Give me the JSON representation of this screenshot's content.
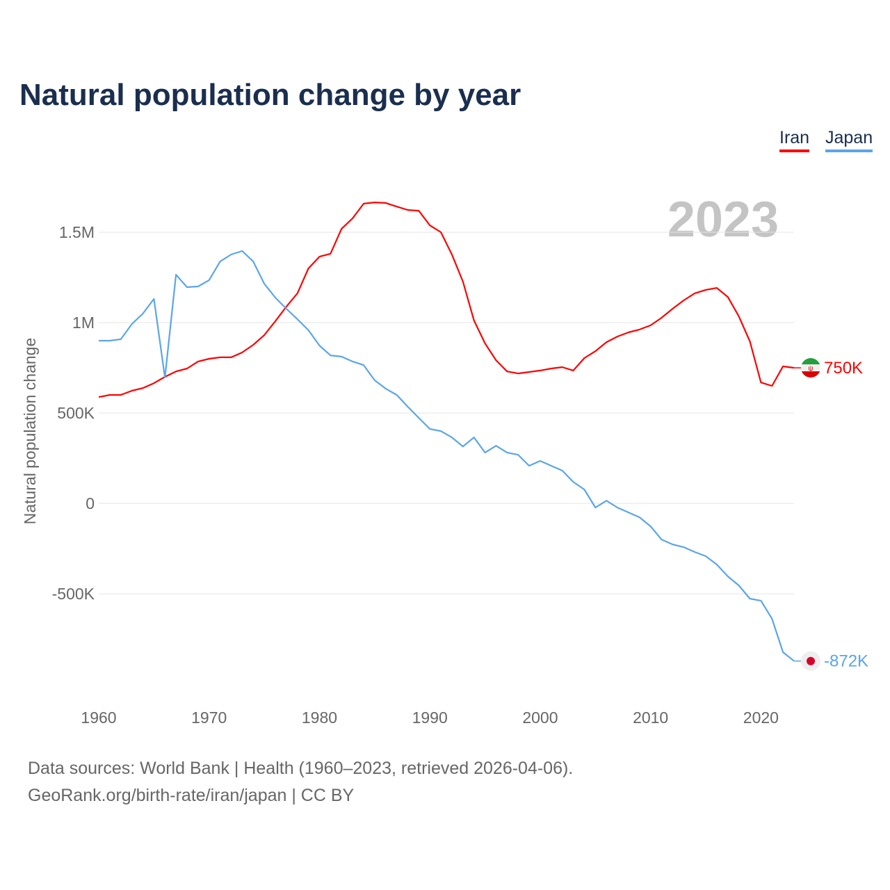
{
  "title": "Natural population change by year",
  "legend": [
    {
      "name": "Iran",
      "color": "#ff0000"
    },
    {
      "name": "Japan",
      "color": "#5aa5ea"
    }
  ],
  "year_label": "2023",
  "source_line1": "Data sources: World Bank | Health (1960–2023, retrieved 2026-04-06).",
  "source_line2": "GeoRank.org/birth-rate/iran/japan | CC BY",
  "chart_data": {
    "type": "line",
    "title": "Natural population change by year",
    "xlabel": "",
    "ylabel": "Natural population change",
    "xlim": [
      1960,
      2023
    ],
    "ylim": [
      -1000000,
      1800000
    ],
    "x_ticks": [
      1960,
      1970,
      1980,
      1990,
      2000,
      2010,
      2020
    ],
    "y_ticks": [
      {
        "v": -500000,
        "label": "-500K"
      },
      {
        "v": 0,
        "label": "0"
      },
      {
        "v": 500000,
        "label": "500K"
      },
      {
        "v": 1000000,
        "label": "1M"
      },
      {
        "v": 1500000,
        "label": "1.5M"
      }
    ],
    "grid": true,
    "legend_position": "top-right",
    "x_start": 1960,
    "series": [
      {
        "name": "Iran",
        "color": "#ff0000",
        "end_label": "750K",
        "flag": "iran-flag",
        "values": [
          588,
          600,
          600,
          623,
          638,
          665,
          700,
          730,
          746,
          785,
          800,
          808,
          808,
          835,
          877,
          931,
          1008,
          1088,
          1162,
          1300,
          1365,
          1381,
          1519,
          1577,
          1658,
          1665,
          1662,
          1642,
          1623,
          1619,
          1538,
          1500,
          1377,
          1227,
          1012,
          885,
          792,
          730,
          719,
          727,
          735,
          746,
          754,
          735,
          804,
          842,
          892,
          923,
          946,
          962,
          985,
          1027,
          1077,
          1123,
          1162,
          1181,
          1192,
          1142,
          1035,
          896,
          669,
          650,
          758,
          750
        ]
      },
      {
        "name": "Japan",
        "color": "#5aa5ea",
        "end_label": "-872K",
        "flag": "japan-flag",
        "values": [
          900,
          900,
          908,
          992,
          1050,
          1131,
          696,
          1265,
          1196,
          1200,
          1235,
          1338,
          1377,
          1396,
          1338,
          1215,
          1138,
          1077,
          1019,
          958,
          873,
          819,
          812,
          785,
          765,
          681,
          635,
          600,
          535,
          473,
          412,
          400,
          365,
          315,
          365,
          281,
          319,
          281,
          269,
          208,
          235,
          208,
          181,
          119,
          77,
          -23,
          15,
          -23,
          -50,
          -77,
          -127,
          -200,
          -227,
          -242,
          -269,
          -292,
          -338,
          -404,
          -454,
          -527,
          -538,
          -638,
          -823,
          -872
        ]
      }
    ],
    "value_unit": "thousands"
  }
}
